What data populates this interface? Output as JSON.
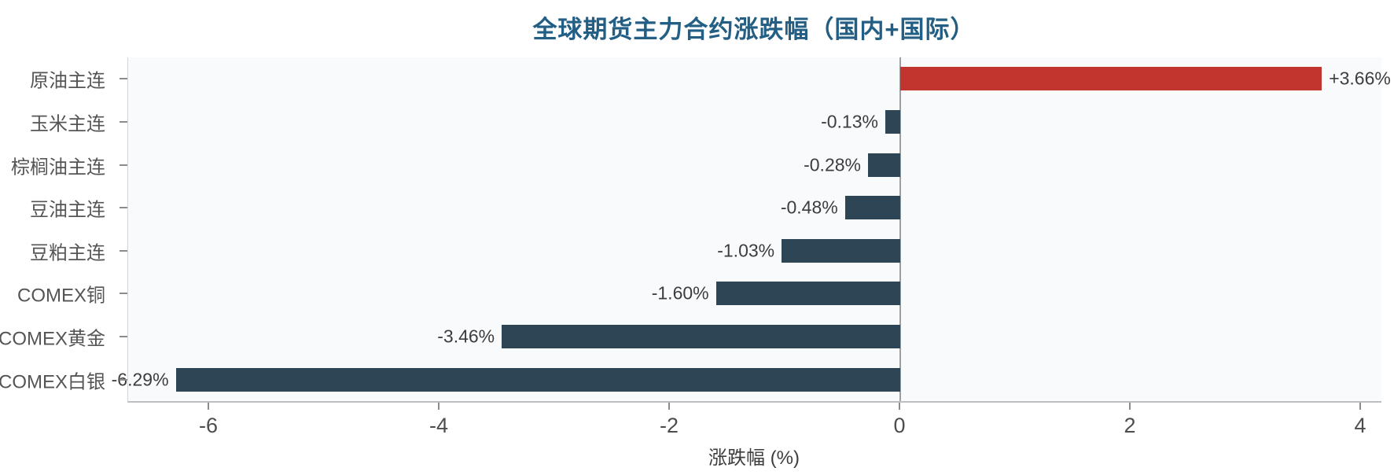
{
  "chart_data": {
    "type": "bar",
    "orientation": "horizontal",
    "title": "全球期货主力合约涨跌幅（国内+国际）",
    "categories": [
      "原油主连",
      "玉米主连",
      "棕榈油主连",
      "豆油主连",
      "豆粕主连",
      "COMEX铜",
      "COMEX黄金",
      "COMEX白银"
    ],
    "values": [
      3.66,
      -0.13,
      -0.28,
      -0.48,
      -1.03,
      -1.6,
      -3.46,
      -6.29
    ],
    "value_labels": [
      "+3.66%",
      "-0.13%",
      "-0.28%",
      "-0.48%",
      "-1.03%",
      "-1.60%",
      "-3.46%",
      "-6.29%"
    ],
    "xlabel": "涨跌幅 (%)",
    "ylabel": "",
    "x_ticks": [
      -6,
      -4,
      -2,
      0,
      2,
      4
    ],
    "x_tick_labels": [
      "-6",
      "-4",
      "-2",
      "0",
      "2",
      "4"
    ],
    "xlim": [
      -6.7,
      4.18
    ],
    "grid": false,
    "legend": "none",
    "colors": {
      "title": "#235e84",
      "bar_positive": "#c1352e",
      "bar_negative": "#2e4556",
      "plot_background": "#f8fafc",
      "axis_line": "#bfbfbf",
      "zero_line": "#9e9e9e",
      "tick_mark": "#8c8c8c",
      "x_tick_label": "#4d4d4d",
      "category_label": "#555555",
      "value_label": "#3d3d3d"
    }
  }
}
